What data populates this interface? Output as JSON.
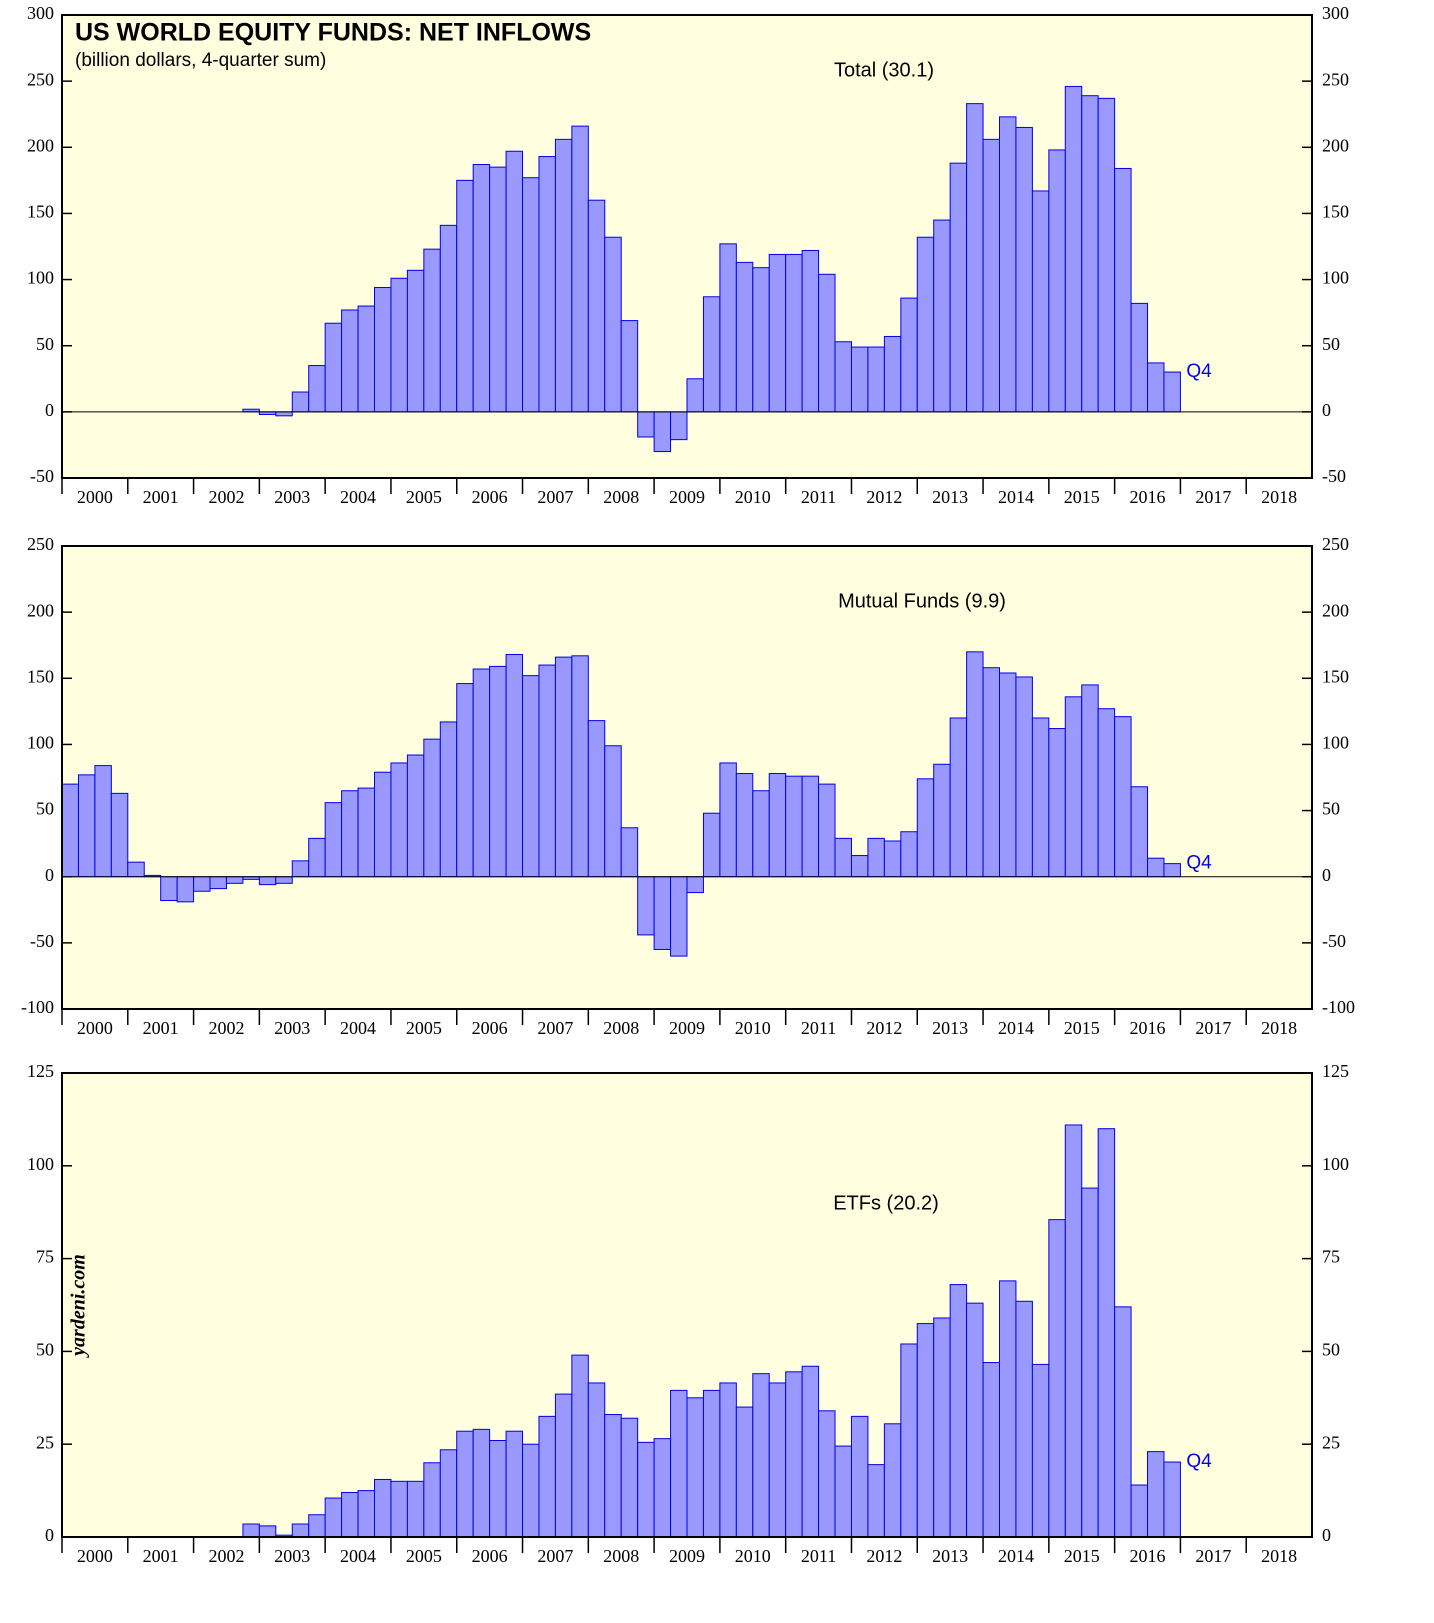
{
  "chart_data": [
    {
      "type": "bar",
      "title": "US WORLD EQUITY FUNDS: NET INFLOWS",
      "subtitle": "(billion dollars, 4-quarter sum)",
      "label": "Total (30.1)",
      "end_label": "Q4",
      "color": "#9999ff",
      "edge_color": "#0000ee",
      "background": "#ffffe0",
      "xlim": [
        2000,
        2019
      ],
      "xticks": [
        2000,
        2001,
        2002,
        2003,
        2004,
        2005,
        2006,
        2007,
        2008,
        2009,
        2010,
        2011,
        2012,
        2013,
        2014,
        2015,
        2016,
        2017,
        2018
      ],
      "ylim": [
        -50,
        300
      ],
      "yticks": [
        -50,
        0,
        50,
        100,
        150,
        200,
        250,
        300
      ],
      "x": [
        2002.75,
        2003,
        2003.25,
        2003.5,
        2003.75,
        2004,
        2004.25,
        2004.5,
        2004.75,
        2005,
        2005.25,
        2005.5,
        2005.75,
        2006,
        2006.25,
        2006.5,
        2006.75,
        2007,
        2007.25,
        2007.5,
        2007.75,
        2008,
        2008.25,
        2008.5,
        2008.75,
        2009,
        2009.25,
        2009.5,
        2009.75,
        2010,
        2010.25,
        2010.5,
        2010.75,
        2011,
        2011.25,
        2011.5,
        2011.75,
        2012,
        2012.25,
        2012.5,
        2012.75,
        2013,
        2013.25,
        2013.5,
        2013.75,
        2014,
        2014.25,
        2014.5,
        2014.75,
        2015,
        2015.25,
        2015.5,
        2015.75,
        2016,
        2016.25,
        2016.5,
        2016.75
      ],
      "values": [
        2,
        -2,
        -3,
        15,
        35,
        67,
        77,
        80,
        94,
        101,
        107,
        123,
        141,
        175,
        187,
        185,
        197,
        177,
        193,
        206,
        216,
        160,
        132,
        69,
        -19,
        -30,
        -21,
        25,
        87,
        127,
        113,
        109,
        119,
        119,
        122,
        104,
        53,
        49,
        49,
        57,
        86,
        132,
        145,
        188,
        233,
        206,
        223,
        215,
        167,
        198,
        246,
        239,
        237,
        184,
        82,
        37,
        30.1
      ]
    },
    {
      "type": "bar",
      "label": "Mutual Funds (9.9)",
      "end_label": "Q4",
      "color": "#9999ff",
      "edge_color": "#0000ee",
      "background": "#ffffe0",
      "xlim": [
        2000,
        2019
      ],
      "xticks": [
        2000,
        2001,
        2002,
        2003,
        2004,
        2005,
        2006,
        2007,
        2008,
        2009,
        2010,
        2011,
        2012,
        2013,
        2014,
        2015,
        2016,
        2017,
        2018
      ],
      "ylim": [
        -100,
        250
      ],
      "yticks": [
        -100,
        -50,
        0,
        50,
        100,
        150,
        200,
        250
      ],
      "x": [
        2000,
        2000.25,
        2000.5,
        2000.75,
        2001,
        2001.25,
        2001.5,
        2001.75,
        2002,
        2002.25,
        2002.5,
        2002.75,
        2003,
        2003.25,
        2003.5,
        2003.75,
        2004,
        2004.25,
        2004.5,
        2004.75,
        2005,
        2005.25,
        2005.5,
        2005.75,
        2006,
        2006.25,
        2006.5,
        2006.75,
        2007,
        2007.25,
        2007.5,
        2007.75,
        2008,
        2008.25,
        2008.5,
        2008.75,
        2009,
        2009.25,
        2009.5,
        2009.75,
        2010,
        2010.25,
        2010.5,
        2010.75,
        2011,
        2011.25,
        2011.5,
        2011.75,
        2012,
        2012.25,
        2012.5,
        2012.75,
        2013,
        2013.25,
        2013.5,
        2013.75,
        2014,
        2014.25,
        2014.5,
        2014.75,
        2015,
        2015.25,
        2015.5,
        2015.75,
        2016,
        2016.25,
        2016.5,
        2016.75
      ],
      "values": [
        70,
        77,
        84,
        63,
        11,
        1,
        -18,
        -19,
        -11,
        -9,
        -5,
        -2,
        -6,
        -5,
        12,
        29,
        56,
        65,
        67,
        79,
        86,
        92,
        104,
        117,
        146,
        157,
        159,
        168,
        152,
        160,
        166,
        167,
        118,
        99,
        37,
        -44,
        -55,
        -60,
        -12,
        48,
        86,
        78,
        65,
        78,
        76,
        76,
        70,
        29,
        16,
        29,
        27,
        34,
        74,
        85,
        120,
        170,
        158,
        154,
        151,
        120,
        112,
        136,
        145,
        127,
        121,
        68,
        14,
        9.9
      ]
    },
    {
      "type": "bar",
      "label": "ETFs (20.2)",
      "end_label": "Q4",
      "source": "yardeni.com",
      "color": "#9999ff",
      "edge_color": "#0000ee",
      "background": "#ffffe0",
      "xlim": [
        2000,
        2019
      ],
      "xticks": [
        2000,
        2001,
        2002,
        2003,
        2004,
        2005,
        2006,
        2007,
        2008,
        2009,
        2010,
        2011,
        2012,
        2013,
        2014,
        2015,
        2016,
        2017,
        2018
      ],
      "ylim": [
        0,
        125
      ],
      "yticks": [
        0,
        25,
        50,
        75,
        100,
        125
      ],
      "x": [
        2002.75,
        2003,
        2003.25,
        2003.5,
        2003.75,
        2004,
        2004.25,
        2004.5,
        2004.75,
        2005,
        2005.25,
        2005.5,
        2005.75,
        2006,
        2006.25,
        2006.5,
        2006.75,
        2007,
        2007.25,
        2007.5,
        2007.75,
        2008,
        2008.25,
        2008.5,
        2008.75,
        2009,
        2009.25,
        2009.5,
        2009.75,
        2010,
        2010.25,
        2010.5,
        2010.75,
        2011,
        2011.25,
        2011.5,
        2011.75,
        2012,
        2012.25,
        2012.5,
        2012.75,
        2013,
        2013.25,
        2013.5,
        2013.75,
        2014,
        2014.25,
        2014.5,
        2014.75,
        2015,
        2015.25,
        2015.5,
        2015.75,
        2016,
        2016.25,
        2016.5,
        2016.75
      ],
      "values": [
        3.5,
        3,
        0.5,
        3.5,
        6,
        10.5,
        12,
        12.5,
        15.5,
        15,
        15,
        20,
        23.5,
        28.5,
        29,
        26,
        28.5,
        25,
        32.5,
        38.5,
        49,
        41.5,
        33,
        32,
        25.5,
        26.5,
        39.5,
        37.5,
        39.5,
        41.5,
        35,
        44,
        41.5,
        44.5,
        46,
        34,
        24.5,
        32.5,
        19.5,
        30.5,
        52,
        57.5,
        59,
        68,
        63,
        47,
        69,
        63.5,
        46.5,
        85.5,
        111,
        94,
        110,
        62,
        14,
        23,
        20.2
      ]
    }
  ]
}
